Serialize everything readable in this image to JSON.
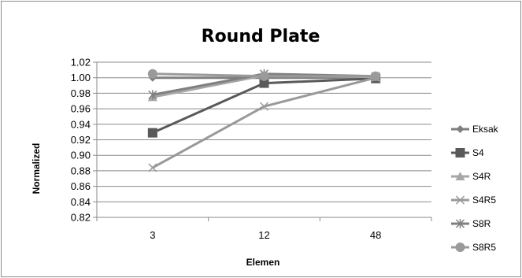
{
  "chart_data": {
    "type": "line",
    "title": "Round Plate",
    "xlabel": "Elemen",
    "ylabel": "Normalized",
    "categories": [
      "3",
      "12",
      "48"
    ],
    "ylim": [
      0.82,
      1.02
    ],
    "yticks": [
      "0.82",
      "0.84",
      "0.86",
      "0.88",
      "0.90",
      "0.92",
      "0.94",
      "0.96",
      "0.98",
      "1.00",
      "1.02"
    ],
    "grid": true,
    "legend_position": "right",
    "series": [
      {
        "name": "Eksak",
        "marker": "diamond",
        "color": "#7f7f7f",
        "values": [
          1.0,
          1.0,
          1.0
        ]
      },
      {
        "name": "S4",
        "marker": "square",
        "color": "#595959",
        "values": [
          0.929,
          0.993,
          0.999
        ]
      },
      {
        "name": "S4R",
        "marker": "triangle",
        "color": "#a6a6a6",
        "values": [
          0.975,
          1.003,
          1.001
        ]
      },
      {
        "name": "S4R5",
        "marker": "x",
        "color": "#999999",
        "values": [
          0.884,
          0.963,
          1.0
        ]
      },
      {
        "name": "S8R",
        "marker": "star",
        "color": "#808080",
        "values": [
          0.978,
          1.005,
          1.002
        ]
      },
      {
        "name": "S8R5",
        "marker": "circle",
        "color": "#9a9a9a",
        "values": [
          1.005,
          1.002,
          1.002
        ]
      }
    ]
  }
}
